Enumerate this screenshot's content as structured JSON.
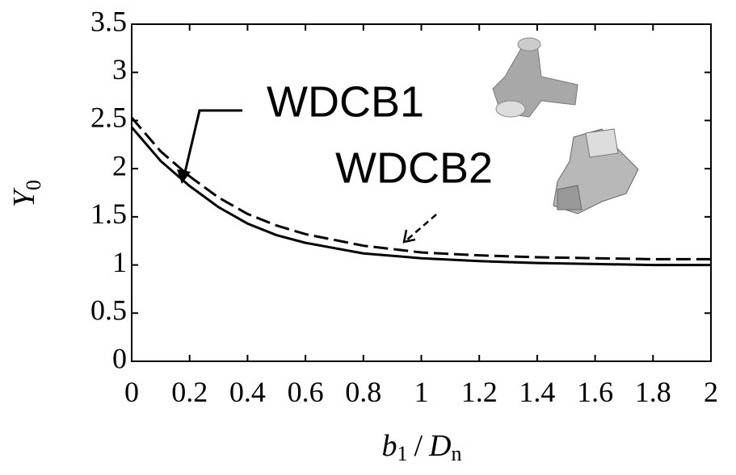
{
  "chart_data": {
    "type": "line",
    "xlabel": [
      "b",
      "1",
      "/",
      "D",
      "n"
    ],
    "ylabel": [
      "Y",
      "0"
    ],
    "x": [
      0,
      0.1,
      0.2,
      0.3,
      0.4,
      0.5,
      0.6,
      0.8,
      1.0,
      1.2,
      1.4,
      1.6,
      1.8,
      2.0
    ],
    "series": [
      {
        "name": "WDCB1",
        "color": "#000000",
        "dash": false,
        "values": [
          2.43,
          2.08,
          1.82,
          1.6,
          1.43,
          1.31,
          1.23,
          1.12,
          1.07,
          1.04,
          1.02,
          1.01,
          1.0,
          1.0
        ]
      },
      {
        "name": "WDCB2",
        "color": "#000000",
        "dash": true,
        "values": [
          2.53,
          2.18,
          1.92,
          1.7,
          1.53,
          1.41,
          1.32,
          1.2,
          1.13,
          1.1,
          1.08,
          1.07,
          1.06,
          1.06
        ]
      }
    ],
    "xlim": [
      0,
      2
    ],
    "xticks": [
      0,
      0.2,
      0.4,
      0.6,
      0.8,
      1,
      1.2,
      1.4,
      1.6,
      1.8,
      2
    ],
    "ylim": [
      0,
      3.5
    ],
    "yticks": [
      0,
      0.5,
      1,
      1.5,
      2,
      2.5,
      3,
      3.5
    ],
    "grid": false
  }
}
